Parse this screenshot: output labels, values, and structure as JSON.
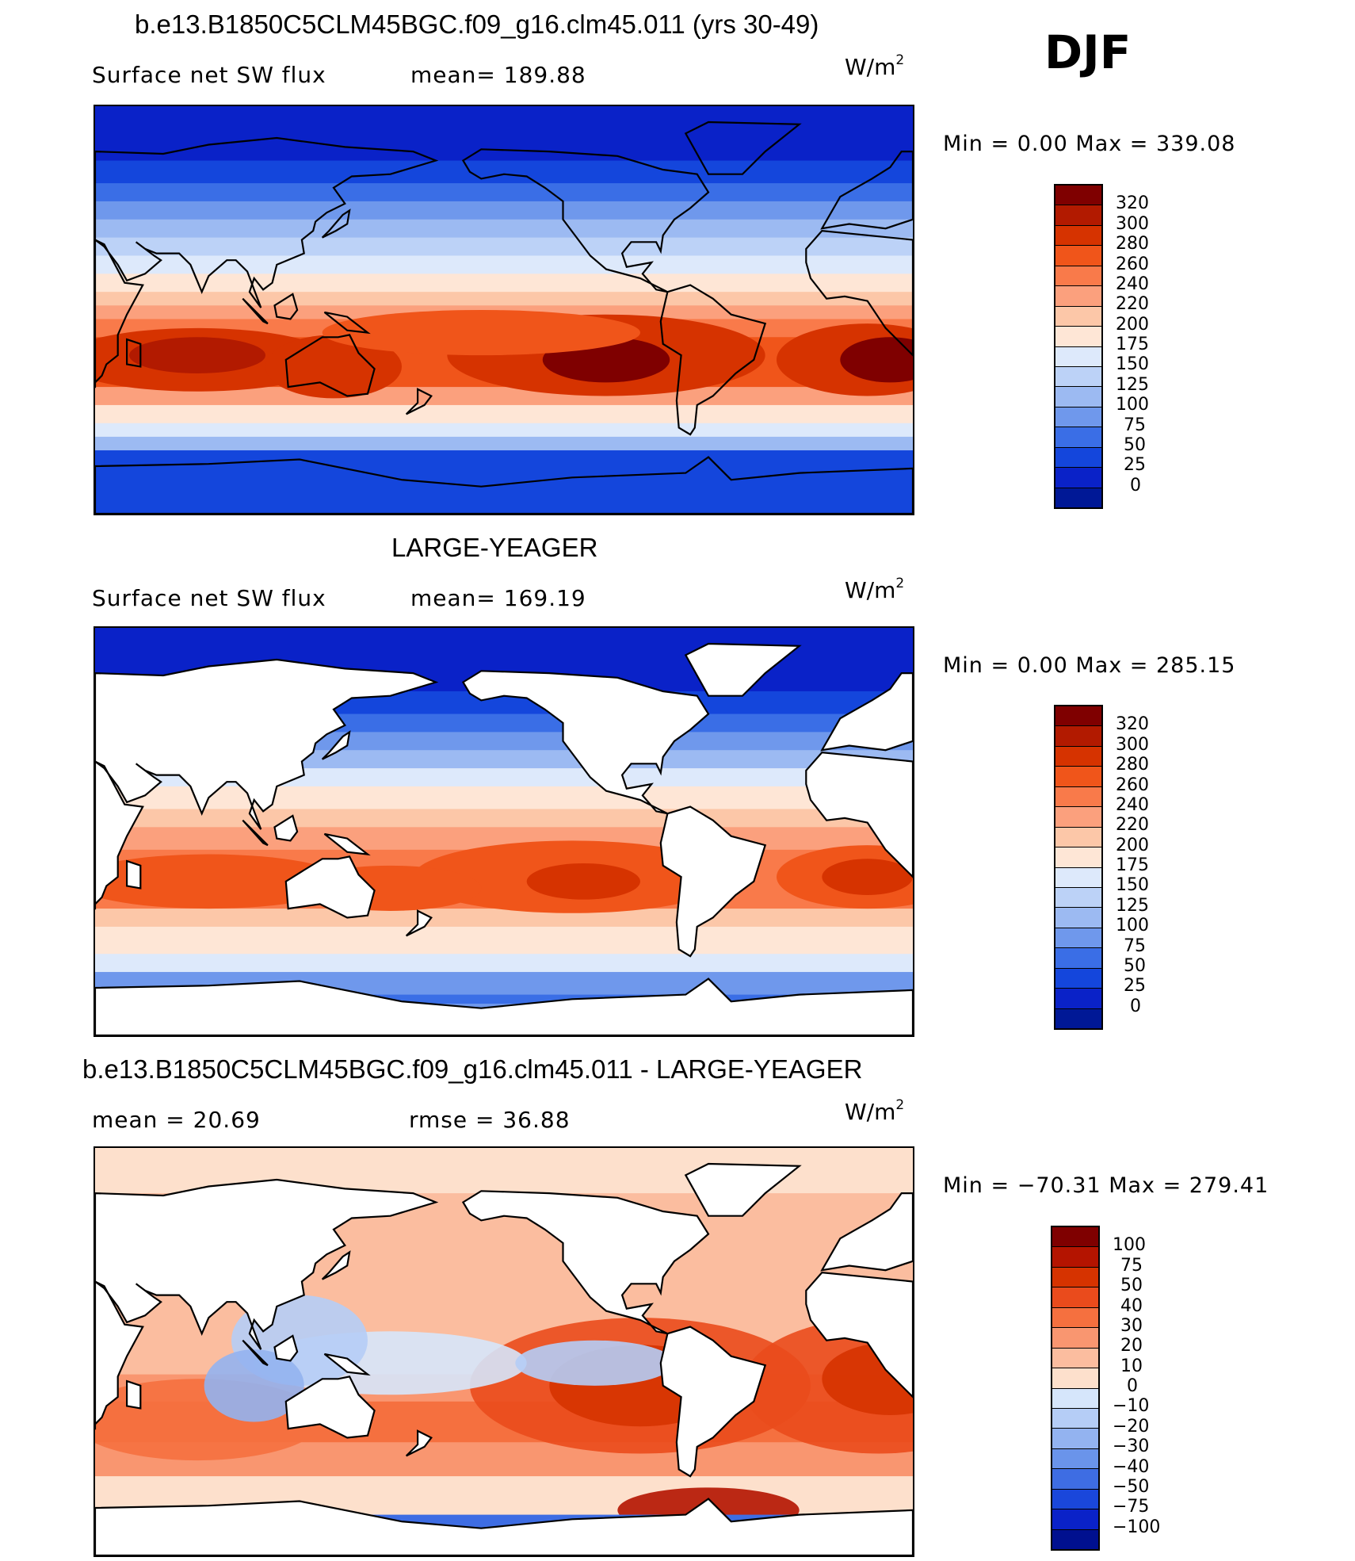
{
  "season": "DJF",
  "panels": [
    {
      "title": "b.e13.B1850C5CLM45BGC.f09_g16.clm45.011 (yrs 30-49)",
      "variable": "Surface net SW flux",
      "mean_text": "mean=  189.88",
      "units": "W/m",
      "units_exp": "2",
      "min_text": "Min  =      0.00  Max  =  339.08",
      "cbar_labels": [
        "320",
        "300",
        "280",
        "260",
        "240",
        "220",
        "200",
        "175",
        "150",
        "125",
        "100",
        "75",
        "50",
        "25",
        "0"
      ],
      "type": "model"
    },
    {
      "title": "LARGE-YEAGER",
      "variable": "Surface net SW flux",
      "mean_text": "mean=  169.19",
      "units": "W/m",
      "units_exp": "2",
      "min_text": "Min  =      0.00  Max  =  285.15",
      "cbar_labels": [
        "320",
        "300",
        "280",
        "260",
        "240",
        "220",
        "200",
        "175",
        "150",
        "125",
        "100",
        "75",
        "50",
        "25",
        "0"
      ],
      "type": "obs"
    },
    {
      "title": "b.e13.B1850C5CLM45BGC.f09_g16.clm45.011 - LARGE-YEAGER",
      "mean_text": "mean  =    20.69",
      "rmse_text": "rmse  =    36.88",
      "units": "W/m",
      "units_exp": "2",
      "min_text": "Min  =  −70.31  Max  =  279.41",
      "cbar_labels": [
        "100",
        "75",
        "50",
        "40",
        "30",
        "20",
        "10",
        "0",
        "−10",
        "−20",
        "−30",
        "−40",
        "−50",
        "−75",
        "−100"
      ],
      "type": "diff"
    }
  ],
  "colors": {
    "abs_scale": [
      "#7f0000",
      "#b21a00",
      "#d63300",
      "#f0551a",
      "#f97a4a",
      "#fba07d",
      "#fcc7a8",
      "#fee6d6",
      "#dde9fb",
      "#bcd2f7",
      "#9cbaf2",
      "#6f98ec",
      "#3a6ee6",
      "#1446dc",
      "#0a22c8",
      "#001896"
    ],
    "diff_scale": [
      "#7f0000",
      "#b41400",
      "#d63300",
      "#ea4b1c",
      "#f5703f",
      "#f99670",
      "#fbbd9f",
      "#fde0cc",
      "#d6e6fb",
      "#b5cdf6",
      "#93b3f0",
      "#6a94ea",
      "#3e6de3",
      "#1a47db",
      "#0a22c8",
      "#00108f"
    ],
    "land_white": "#ffffff"
  }
}
